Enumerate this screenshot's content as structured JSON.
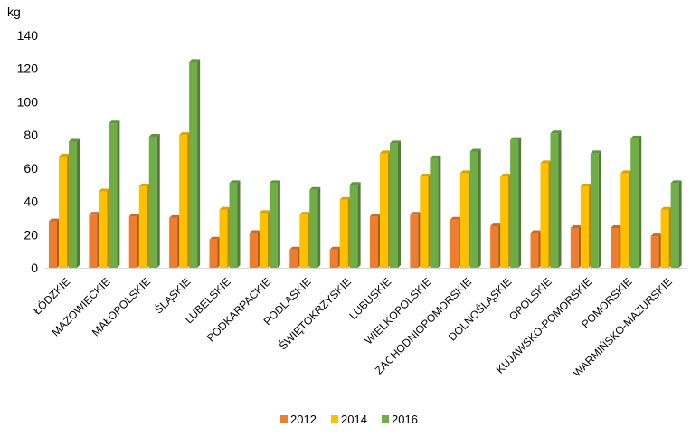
{
  "chart_data": {
    "type": "bar",
    "title": "",
    "ylabel": "kg",
    "xlabel": "",
    "ylim": [
      0,
      140
    ],
    "yticks": [
      0,
      20,
      40,
      60,
      80,
      100,
      120,
      140
    ],
    "grid": false,
    "legend_position": "bottom",
    "categories": [
      "ŁÓDZKIE",
      "MAZOWIECKIE",
      "MAŁOPOLSKIE",
      "ŚLĄSKIE",
      "LUBELSKIE",
      "PODKARPACKIE",
      "PODLASKIE",
      "ŚWIĘTOKRZYSKIE",
      "LUBUSKIE",
      "WIELKOPOLSKIE",
      "ZACHODNIOPOMORSKIE",
      "DOLNOŚLĄSKIE",
      "OPOLSKIE",
      "KUJAWSKO-POMORSKIE",
      "POMORSKIE",
      "WARMIŃSKO-MAZURSKIE"
    ],
    "series": [
      {
        "name": "2012",
        "color": "#ED7D31",
        "values": [
          28,
          32,
          31,
          30,
          17,
          21,
          11,
          11,
          31,
          32,
          29,
          25,
          21,
          24,
          24,
          19
        ]
      },
      {
        "name": "2014",
        "color": "#FFC000",
        "values": [
          67,
          46,
          49,
          80,
          35,
          33,
          32,
          41,
          69,
          55,
          57,
          55,
          63,
          49,
          57,
          35
        ]
      },
      {
        "name": "2016",
        "color": "#70AD47",
        "values": [
          76,
          87,
          79,
          124,
          51,
          51,
          47,
          50,
          75,
          66,
          70,
          77,
          81,
          69,
          78,
          51
        ]
      }
    ]
  }
}
